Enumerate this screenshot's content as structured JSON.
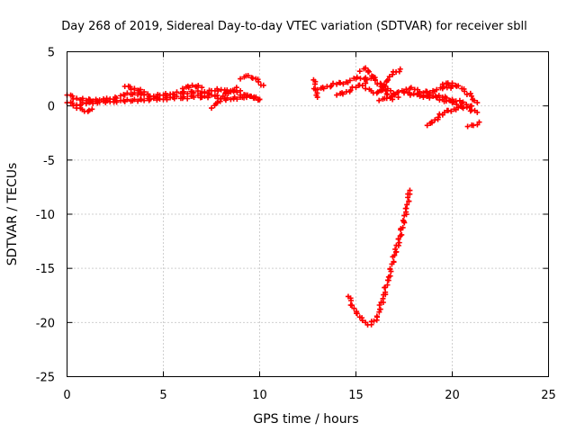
{
  "chart_data": {
    "type": "scatter",
    "title": "Day 268 of 2019, Sidereal Day-to-day VTEC variation (SDTVAR) for receiver sbll",
    "xlabel": "GPS time / hours",
    "ylabel": "SDTVAR / TECUs",
    "xlim": [
      0,
      25
    ],
    "ylim": [
      -25,
      5
    ],
    "x_ticks": [
      0,
      5,
      10,
      15,
      20,
      25
    ],
    "y_ticks": [
      -25,
      -20,
      -15,
      -10,
      -5,
      0,
      5
    ],
    "grid": true,
    "legend": "none",
    "marker": "plus",
    "color": "#ff0000",
    "series": [
      {
        "x": [
          0.0,
          0.5,
          1.0,
          1.5,
          2.0,
          2.5,
          3.0,
          3.5,
          4.0,
          4.5,
          5.0,
          5.5,
          6.0,
          6.5,
          7.0,
          7.5,
          8.0,
          8.5,
          9.0
        ],
        "y": [
          1.0,
          0.7,
          0.5,
          0.6,
          0.5,
          0.8,
          1.0,
          1.2,
          1.0,
          0.9,
          1.0,
          1.1,
          1.2,
          1.3,
          1.2,
          1.4,
          1.5,
          1.3,
          1.4
        ]
      },
      {
        "x": [
          0.0,
          0.5,
          1.0,
          1.5,
          2.0,
          2.5,
          3.0,
          3.5,
          4.0,
          4.5,
          5.0,
          5.5,
          6.0,
          6.5,
          7.0,
          7.5,
          8.0,
          8.5,
          9.0,
          9.5,
          10.0
        ],
        "y": [
          0.3,
          0.1,
          0.2,
          0.4,
          0.3,
          0.5,
          0.4,
          0.6,
          0.5,
          0.7,
          0.6,
          0.8,
          0.7,
          0.9,
          0.8,
          1.0,
          0.7,
          0.6,
          0.8,
          0.9,
          0.6
        ]
      },
      {
        "x": [
          0.5,
          0.9,
          1.3
        ],
        "y": [
          -0.2,
          -0.5,
          -0.3
        ]
      },
      {
        "x": [
          3.0,
          3.5,
          4.0
        ],
        "y": [
          1.8,
          1.6,
          1.3
        ]
      },
      {
        "x": [
          6.0,
          6.5,
          7.0
        ],
        "y": [
          1.6,
          1.9,
          1.7
        ]
      },
      {
        "x": [
          7.5,
          7.8,
          8.1,
          8.5,
          8.8
        ],
        "y": [
          -0.2,
          0.3,
          0.9,
          1.4,
          1.7
        ]
      },
      {
        "x": [
          9.0,
          9.4,
          9.8,
          10.2
        ],
        "y": [
          2.5,
          2.8,
          2.5,
          1.9
        ]
      },
      {
        "x": [
          9.0,
          9.5,
          10.0
        ],
        "y": [
          1.0,
          0.9,
          0.6
        ]
      },
      {
        "x": [
          12.8,
          12.9,
          13.0
        ],
        "y": [
          2.4,
          1.5,
          0.8
        ]
      },
      {
        "x": [
          13.0,
          13.5,
          14.0,
          14.5,
          15.0,
          15.5,
          16.0
        ],
        "y": [
          1.5,
          1.8,
          2.0,
          2.2,
          2.5,
          2.6,
          2.4
        ]
      },
      {
        "x": [
          14.0,
          14.5,
          15.0,
          15.5
        ],
        "y": [
          1.0,
          1.3,
          1.7,
          2.1
        ]
      },
      {
        "x": [
          15.2,
          15.5,
          15.9,
          16.3,
          16.6,
          16.9
        ],
        "y": [
          3.2,
          3.5,
          2.7,
          1.8,
          1.1,
          0.6
        ]
      },
      {
        "x": [
          15.5,
          15.9,
          16.3,
          16.6,
          16.9,
          17.3
        ],
        "y": [
          1.6,
          1.2,
          1.4,
          2.3,
          2.9,
          3.4
        ]
      },
      {
        "x": [
          16.2,
          16.6,
          17.0,
          17.4,
          17.8,
          18.2
        ],
        "y": [
          0.5,
          0.7,
          1.0,
          1.4,
          1.6,
          1.5
        ]
      },
      {
        "x": [
          16.3,
          16.8,
          17.2
        ],
        "y": [
          2.0,
          1.4,
          0.8
        ]
      },
      {
        "x": [
          17.5,
          18.0,
          18.5,
          19.0,
          19.5,
          20.0
        ],
        "y": [
          1.2,
          1.1,
          1.2,
          1.4,
          1.6,
          1.8
        ]
      },
      {
        "x": [
          19.5,
          20.0,
          20.5,
          21.0,
          21.3
        ],
        "y": [
          2.0,
          2.1,
          1.6,
          0.9,
          0.3
        ]
      },
      {
        "x": [
          18.5,
          19.0,
          19.5,
          20.0,
          20.5,
          21.0
        ],
        "y": [
          0.8,
          0.9,
          0.8,
          0.6,
          0.3,
          0.0
        ]
      },
      {
        "x": [
          18.0,
          18.5,
          19.0,
          19.5,
          20.0,
          20.5,
          21.3
        ],
        "y": [
          1.1,
          1.0,
          0.9,
          0.6,
          0.3,
          0.0,
          -0.6
        ]
      },
      {
        "x": [
          18.7,
          19.1,
          19.6,
          20.1,
          20.5
        ],
        "y": [
          -1.8,
          -1.3,
          -0.6,
          -0.3,
          -0.1
        ]
      },
      {
        "x": [
          20.8,
          21.1,
          21.4
        ],
        "y": [
          -1.9,
          -1.8,
          -1.5
        ]
      },
      {
        "x": [
          14.6,
          14.9,
          15.2,
          15.5,
          15.8,
          16.1,
          16.4,
          16.7,
          17.0,
          17.3,
          17.6,
          17.8
        ],
        "y": [
          -17.6,
          -18.7,
          -19.5,
          -20.0,
          -20.2,
          -19.5,
          -17.8,
          -15.8,
          -13.8,
          -12.0,
          -9.8,
          -7.8
        ]
      }
    ]
  }
}
